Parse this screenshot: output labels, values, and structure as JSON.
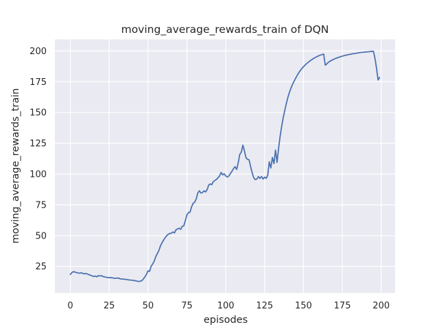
{
  "chart_data": {
    "type": "line",
    "title": "moving_average_rewards_train of DQN",
    "xlabel": "episodes",
    "ylabel": "moving_average_rewards_train",
    "xticks": [
      0,
      25,
      50,
      75,
      100,
      125,
      150,
      175,
      200
    ],
    "yticks": [
      25,
      50,
      75,
      100,
      125,
      150,
      175,
      200
    ],
    "xlim": [
      -9.95,
      208.95
    ],
    "ylim": [
      3.4,
      209.4
    ],
    "grid": true,
    "legend": false,
    "colors": {
      "figure_background": "#ffffff",
      "plot_background": "#eaeaf2",
      "gridline": "#ffffff",
      "line": "#4c72b0",
      "text": "#262626"
    },
    "series": [
      {
        "name": "moving_average_rewards_train",
        "x_start": 0,
        "x_step": 1,
        "y": [
          18.5,
          20.0,
          20.8,
          20.4,
          20.0,
          19.7,
          19.5,
          19.8,
          19.4,
          18.9,
          19.3,
          18.8,
          18.2,
          17.9,
          17.3,
          16.8,
          17.2,
          16.5,
          17.6,
          17.2,
          17.5,
          16.8,
          16.5,
          16.2,
          16.0,
          15.9,
          15.9,
          15.7,
          15.5,
          15.3,
          15.5,
          15.6,
          14.9,
          14.8,
          14.7,
          14.6,
          14.4,
          14.2,
          14.0,
          13.9,
          13.7,
          13.6,
          13.3,
          13.0,
          12.8,
          13.0,
          13.4,
          14.9,
          16.5,
          18.6,
          21.4,
          21.0,
          25.2,
          27.0,
          29.5,
          33.0,
          35.5,
          38.0,
          41.8,
          44.2,
          46.4,
          48.3,
          50.0,
          51.1,
          51.8,
          52.0,
          53.0,
          52.2,
          54.8,
          55.4,
          56.0,
          55.2,
          57.6,
          58.0,
          62.2,
          66.9,
          68.7,
          69.0,
          73.4,
          76.2,
          77.2,
          79.9,
          84.6,
          86.4,
          84.6,
          85.0,
          86.4,
          85.5,
          87.3,
          91.1,
          92.0,
          91.4,
          93.9,
          94.8,
          95.7,
          97.0,
          98.5,
          101.3,
          99.4,
          100.2,
          98.5,
          97.6,
          98.5,
          100.4,
          102.3,
          104.5,
          106.0,
          103.8,
          109.0,
          116.0,
          117.8,
          123.5,
          118.9,
          113.3,
          112.0,
          111.6,
          106.0,
          101.0,
          97.0,
          95.5,
          96.0,
          98.0,
          96.5,
          98.0,
          96.0,
          97.5,
          96.5,
          99.0,
          110.0,
          105.0,
          113.5,
          108.5,
          119.5,
          109.5,
          121.0,
          131.0,
          139.0,
          146.0,
          152.0,
          157.5,
          162.5,
          166.5,
          170.0,
          173.0,
          175.5,
          178.0,
          180.3,
          182.4,
          184.2,
          185.8,
          187.2,
          188.5,
          189.7,
          190.8,
          191.8,
          192.7,
          193.5,
          194.3,
          195.0,
          195.6,
          196.2,
          196.7,
          197.1,
          197.5,
          188.5,
          189.5,
          190.8,
          191.6,
          192.3,
          193.0,
          193.6,
          194.1,
          194.6,
          195.0,
          195.4,
          195.8,
          196.2,
          196.5,
          196.8,
          197.1,
          197.3,
          197.6,
          197.8,
          198.0,
          198.2,
          198.4,
          198.6,
          198.8,
          198.9,
          199.1,
          199.2,
          199.3,
          199.4,
          199.6,
          199.7,
          199.8,
          194.0,
          186.0,
          176.5,
          178.5
        ]
      }
    ]
  }
}
